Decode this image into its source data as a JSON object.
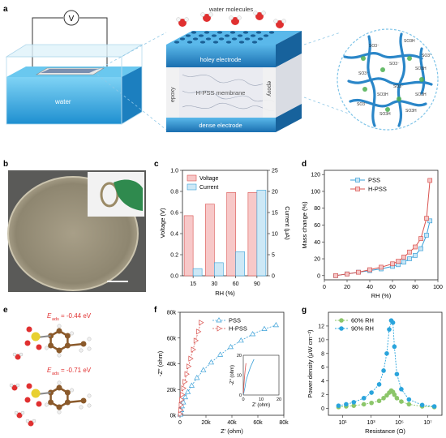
{
  "panels": {
    "a": {
      "letter": "a",
      "labels": {
        "voltmeter": "V",
        "water": "water",
        "water_molecules": "water molecules",
        "holey_electrode": "holey electrode",
        "membrane": "H-PSS membrane",
        "dense_electrode": "dense electrode",
        "epoxy_left": "epoxy",
        "epoxy_right": "epoxy"
      },
      "polymer_labels": [
        "SO3⁻",
        "SO3H",
        "SO3⁻",
        "SO3H",
        "SO3⁻",
        "SO3⁻",
        "SO3H",
        "SO3H",
        "SO3⁻",
        "SO3H",
        "SO3⁻",
        "SO3H"
      ]
    },
    "b": {
      "letter": "b"
    },
    "c": {
      "letter": "c",
      "legend": [
        "Voltage",
        "Current"
      ],
      "colors": {
        "voltage": "#f7c8c8",
        "voltage_edge": "#d9534f",
        "current": "#cde8f6",
        "current_edge": "#3aa0d8"
      }
    },
    "d": {
      "letter": "d",
      "colors": {
        "pss": "#3aa0d8",
        "hpss": "#d9534f"
      }
    },
    "e": {
      "letter": "e",
      "energy1_label": "E",
      "energy1_sub": "ads",
      "energy1_value": "= -0.44 eV",
      "energy2_label": "E",
      "energy2_sub": "ads",
      "energy2_value": "= -0.71 eV",
      "colors": {
        "carbon": "#8b5a2b",
        "oxygen": "#e03030",
        "sulfur": "#e8d030",
        "hydrogen": "#f0f0f0"
      }
    },
    "f": {
      "letter": "f",
      "colors": {
        "pss": "#3aa0d8",
        "hpss": "#d9534f"
      }
    },
    "g": {
      "letter": "g",
      "colors": {
        "rh60": "#8cc66a",
        "rh90": "#2aa4dc"
      }
    }
  },
  "chart_data": [
    {
      "id": "c",
      "type": "bar",
      "categories": [
        "15",
        "30",
        "60",
        "90"
      ],
      "series": [
        {
          "name": "Voltage",
          "axis": "left",
          "values": [
            0.57,
            0.68,
            0.79,
            0.79
          ]
        },
        {
          "name": "Current",
          "axis": "right",
          "values": [
            1.7,
            3.1,
            5.7,
            20.3
          ]
        }
      ],
      "xlabel": "RH (%)",
      "ylabel": "Voltage (V)",
      "y2label": "Current (μA)",
      "ylim": [
        0,
        1.0
      ],
      "y2lim": [
        0,
        25
      ],
      "yticks": [
        "0.0",
        "0.2",
        "0.4",
        "0.6",
        "0.8",
        "1.0"
      ],
      "y2ticks": [
        "0",
        "5",
        "10",
        "15",
        "20",
        "25"
      ],
      "legend_position": "top-left"
    },
    {
      "id": "d",
      "type": "line",
      "series": [
        {
          "name": "PSS",
          "marker": "square",
          "x": [
            10,
            20,
            30,
            40,
            50,
            60,
            65,
            70,
            75,
            80,
            85,
            90,
            93
          ],
          "y": [
            0,
            2,
            4,
            6,
            8,
            11,
            13,
            16,
            20,
            24,
            32,
            48,
            65
          ]
        },
        {
          "name": "H-PSS",
          "marker": "square",
          "x": [
            10,
            20,
            30,
            40,
            50,
            60,
            65,
            70,
            75,
            80,
            85,
            90,
            93
          ],
          "y": [
            0,
            2,
            4,
            7,
            10,
            14,
            17,
            22,
            28,
            34,
            44,
            68,
            113
          ]
        }
      ],
      "xlabel": "RH (%)",
      "ylabel": "Mass change (%)",
      "xlim": [
        0,
        100
      ],
      "ylim": [
        -5,
        125
      ],
      "xticks": [
        "0",
        "20",
        "40",
        "60",
        "80",
        "100"
      ],
      "yticks": [
        "0",
        "20",
        "40",
        "60",
        "80",
        "100",
        "120"
      ],
      "legend_position": "top-left"
    },
    {
      "id": "f",
      "type": "scatter",
      "series": [
        {
          "name": "PSS",
          "marker": "triangle-up",
          "x": [
            0.2,
            0.5,
            1,
            1.5,
            2.5,
            4,
            6,
            9,
            13,
            18,
            24,
            31,
            39,
            47,
            56,
            65,
            74
          ],
          "y": [
            0.5,
            2,
            4,
            7,
            10,
            14,
            18,
            23,
            29,
            35,
            41,
            47,
            53,
            58,
            63,
            67,
            70
          ]
        },
        {
          "name": "H-PSS",
          "marker": "triangle-right",
          "x": [
            0.1,
            0.3,
            0.6,
            1,
            1.5,
            2.5,
            3.5,
            5,
            6.5,
            8,
            10,
            12,
            14,
            16
          ],
          "y": [
            1,
            4,
            8,
            12,
            16,
            21,
            26,
            32,
            38,
            44,
            51,
            58,
            65,
            72
          ]
        }
      ],
      "xlabel": "Z′ (ohm)",
      "ylabel": "-Z″ (ohm)",
      "xlim": [
        0,
        80000
      ],
      "ylim": [
        0,
        80000
      ],
      "xticks": [
        "0",
        "20k",
        "40k",
        "60k",
        "80k"
      ],
      "yticks": [
        "0k",
        "20k",
        "40k",
        "60k",
        "80k"
      ],
      "legend_position": "top-center",
      "inset": {
        "xlabel": "Z′ (ohm)",
        "ylabel": "-Z″ (ohm)",
        "xlim": [
          0,
          20
        ],
        "ylim": [
          0,
          20
        ],
        "xticks": [
          "0",
          "10",
          "20"
        ],
        "yticks": [
          "0",
          "10",
          "20"
        ]
      }
    },
    {
      "id": "g",
      "type": "line",
      "x_scale": "log",
      "series": [
        {
          "name": "60% RH",
          "marker": "circle",
          "x": [
            5,
            10,
            20,
            50,
            100,
            200,
            300,
            400,
            500,
            600,
            700,
            800,
            1000,
            1500,
            3000,
            10000,
            30000
          ],
          "y": [
            0.2,
            0.3,
            0.4,
            0.6,
            0.8,
            1.1,
            1.5,
            1.9,
            2.3,
            2.6,
            2.4,
            2.0,
            1.5,
            1.0,
            0.6,
            0.3,
            0.2
          ]
        },
        {
          "name": "90% RH",
          "marker": "circle",
          "x": [
            5,
            10,
            20,
            50,
            100,
            200,
            300,
            400,
            500,
            600,
            700,
            800,
            1000,
            1500,
            3000,
            10000,
            30000
          ],
          "y": [
            0.4,
            0.6,
            0.9,
            1.5,
            2.3,
            3.5,
            5.5,
            8.0,
            11.5,
            12.8,
            12.5,
            9.0,
            5.0,
            2.8,
            1.3,
            0.5,
            0.3
          ]
        }
      ],
      "xlabel": "Resistance (Ω)",
      "ylabel": "Power density (μW cm⁻²)",
      "xlim": [
        2,
        60000
      ],
      "ylim": [
        -1,
        14
      ],
      "xticks": [
        "10¹",
        "10³",
        "10⁵",
        "10⁷"
      ],
      "yticks": [
        "0",
        "2",
        "4",
        "6",
        "8",
        "10",
        "12"
      ],
      "legend_position": "top-left"
    }
  ]
}
